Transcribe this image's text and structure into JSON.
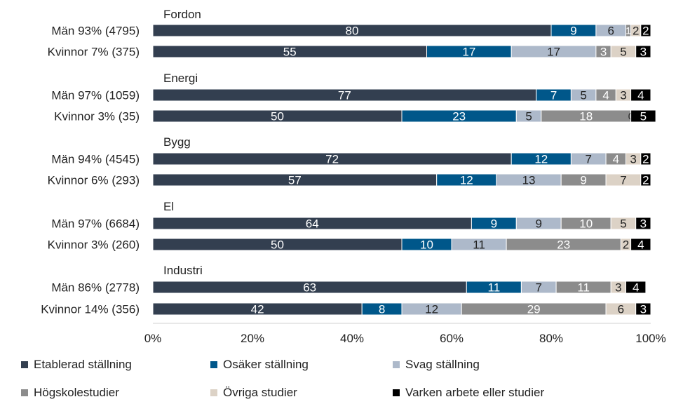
{
  "chart_data": {
    "type": "bar",
    "orientation": "horizontal",
    "stacked": true,
    "groups": [
      {
        "label": "Fordon",
        "rows": [
          {
            "label": "Män  93% (4795)",
            "values": [
              80,
              9,
              6,
              1,
              2,
              2
            ]
          },
          {
            "label": "Kvinnor  7% (375)",
            "values": [
              55,
              17,
              17,
              3,
              5,
              3
            ]
          }
        ]
      },
      {
        "label": "Energi",
        "rows": [
          {
            "label": "Män  97% (1059)",
            "values": [
              77,
              7,
              5,
              4,
              3,
              4
            ]
          },
          {
            "label": "Kvinnor  3% (35)",
            "values": [
              50,
              23,
              5,
              18,
              0,
              5
            ]
          }
        ]
      },
      {
        "label": "Bygg",
        "rows": [
          {
            "label": "Män  94% (4545)",
            "values": [
              72,
              12,
              7,
              4,
              3,
              2
            ]
          },
          {
            "label": "Kvinnor  6% (293)",
            "values": [
              57,
              12,
              13,
              9,
              7,
              2
            ]
          }
        ]
      },
      {
        "label": "El",
        "rows": [
          {
            "label": "Män  97% (6684)",
            "values": [
              64,
              9,
              9,
              10,
              5,
              3
            ]
          },
          {
            "label": "Kvinnor  3% (260)",
            "values": [
              50,
              10,
              11,
              23,
              2,
              4
            ]
          }
        ]
      },
      {
        "label": "Industri",
        "rows": [
          {
            "label": "Män  86% (2778)",
            "values": [
              63,
              11,
              7,
              11,
              3,
              4
            ]
          },
          {
            "label": "Kvinnor  14%  (356)",
            "values": [
              42,
              8,
              12,
              29,
              6,
              3
            ]
          }
        ]
      }
    ],
    "series": [
      {
        "name": "Etablerad ställning",
        "color": "#333f50",
        "label_color": "#ffffff"
      },
      {
        "name": "Osäker ställning",
        "color": "#00578a",
        "label_color": "#ffffff"
      },
      {
        "name": "Svag ställning",
        "color": "#adb9ca",
        "label_color": "#222222"
      },
      {
        "name": "Högskolestudier",
        "color": "#8c8c8c",
        "label_color": "#ffffff"
      },
      {
        "name": "Övriga studier",
        "color": "#dcd2c6",
        "label_color": "#222222"
      },
      {
        "name": "Varken arbete eller studier",
        "color": "#000000",
        "label_color": "#ffffff"
      }
    ],
    "x_ticks": [
      "0%",
      "20%",
      "40%",
      "60%",
      "80%",
      "100%"
    ],
    "xlim": [
      0,
      100
    ],
    "grid": false,
    "legend_position": "bottom"
  }
}
